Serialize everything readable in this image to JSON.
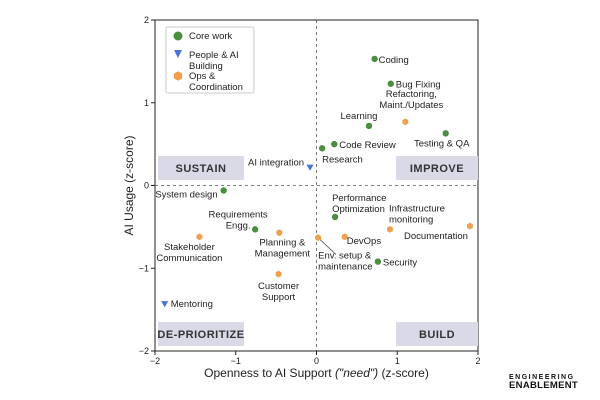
{
  "chart_data": {
    "type": "scatter",
    "xlabel_main": "Openness to AI Support ",
    "xlabel_italic": "(\"need\")",
    "xlabel_suffix": " (z-score)",
    "ylabel": "AI Usage (z-score)",
    "xlim": [
      -2,
      2
    ],
    "ylim": [
      -2,
      2
    ],
    "xticks": [
      -2,
      -1,
      0,
      1,
      2
    ],
    "yticks": [
      -2,
      -1,
      0,
      1,
      2
    ],
    "categories": [
      {
        "name": "Core work",
        "color": "#4b8e3f",
        "marker": "circle"
      },
      {
        "name": "People & AI\nBuilding",
        "color": "#4a73d9",
        "marker": "triangle-down"
      },
      {
        "name": "Ops &\nCoordination",
        "color": "#f0a04b",
        "marker": "hexagon"
      }
    ],
    "quadrants": [
      {
        "label": "SUSTAIN",
        "position": "top-left"
      },
      {
        "label": "IMPROVE",
        "position": "top-right"
      },
      {
        "label": "DE-PRIORITIZE",
        "position": "bottom-left"
      },
      {
        "label": "BUILD",
        "position": "bottom-right"
      }
    ],
    "points": [
      {
        "label": "Coding",
        "x": 0.72,
        "y": 1.53,
        "category": 0
      },
      {
        "label": "Bug Fixing",
        "x": 0.92,
        "y": 1.23,
        "category": 0
      },
      {
        "label": "Refactoring,\nMaint./Updates",
        "x": 1.1,
        "y": 0.77,
        "category": 2
      },
      {
        "label": "Learning",
        "x": 0.65,
        "y": 0.72,
        "category": 0
      },
      {
        "label": "Testing & QA",
        "x": 1.6,
        "y": 0.63,
        "category": 0
      },
      {
        "label": "Code Review",
        "x": 0.22,
        "y": 0.5,
        "category": 0
      },
      {
        "label": "Research",
        "x": 0.07,
        "y": 0.45,
        "category": 0
      },
      {
        "label": "AI integration",
        "x": -0.08,
        "y": 0.22,
        "category": 1
      },
      {
        "label": "System design",
        "x": -1.15,
        "y": -0.06,
        "category": 0
      },
      {
        "label": "Performance\nOptimization",
        "x": 0.23,
        "y": -0.38,
        "category": 0
      },
      {
        "label": "Infrastructure\nmonitoring",
        "x": 0.91,
        "y": -0.53,
        "category": 2
      },
      {
        "label": "Documentation",
        "x": 1.9,
        "y": -0.49,
        "category": 2
      },
      {
        "label": "Requirements\nEngg.",
        "x": -0.76,
        "y": -0.53,
        "category": 0
      },
      {
        "label": "Planning &\nManagement",
        "x": -0.46,
        "y": -0.57,
        "category": 2
      },
      {
        "label": "Stakeholder\nCommunication",
        "x": -1.45,
        "y": -0.62,
        "category": 2
      },
      {
        "label": "DevOps",
        "x": 0.35,
        "y": -0.62,
        "category": 2
      },
      {
        "label": "Env. setup &\nmaintenance",
        "x": 0.02,
        "y": -0.63,
        "category": 2
      },
      {
        "label": "Security",
        "x": 0.76,
        "y": -0.92,
        "category": 0
      },
      {
        "label": "Customer\nSupport",
        "x": -0.47,
        "y": -1.07,
        "category": 2
      },
      {
        "label": "Mentoring",
        "x": -1.88,
        "y": -1.43,
        "category": 1
      }
    ]
  },
  "branding": {
    "line1": "ENGINEERING",
    "line2": "ENABLEMENT"
  }
}
